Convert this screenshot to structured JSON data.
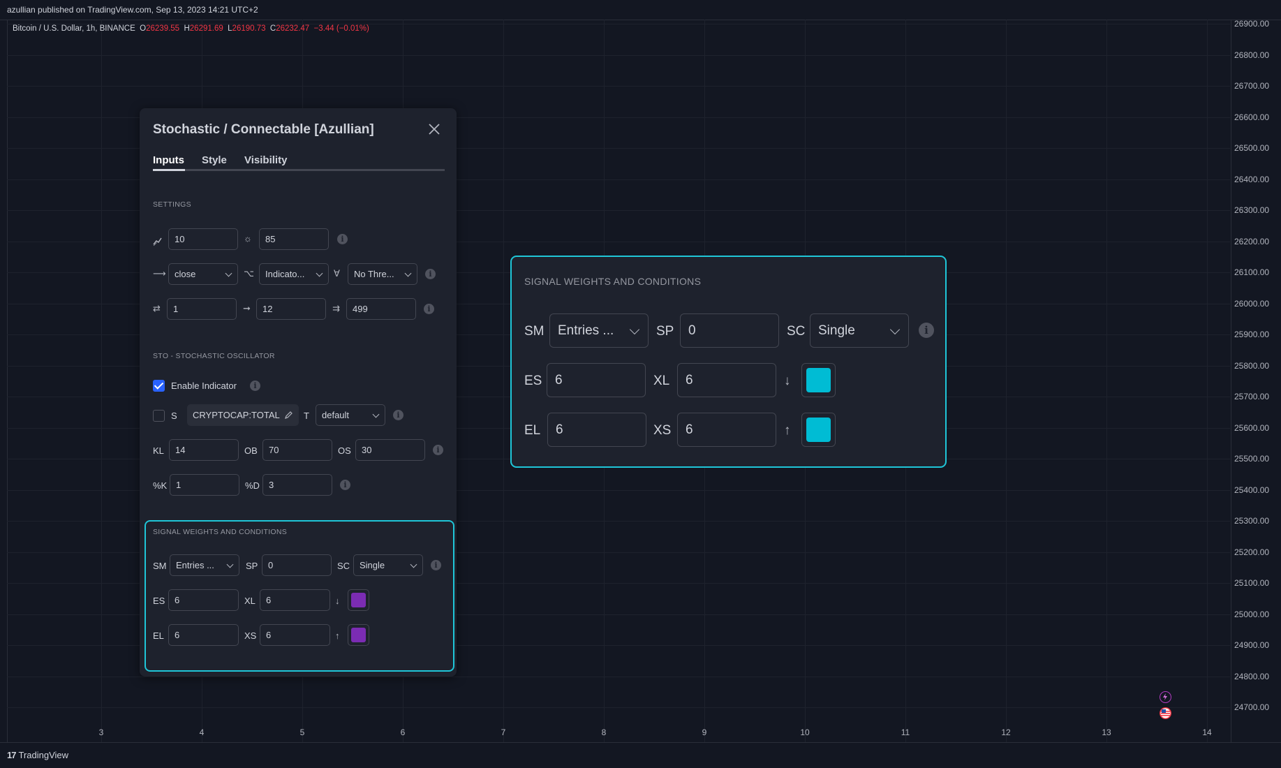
{
  "publish_line": "azullian published on TradingView.com, Sep 13, 2023 14:21 UTC+2",
  "symbol": {
    "name": "Bitcoin / U.S. Dollar, 1h, BINANCE",
    "o_label": "O",
    "o": "26239.55",
    "h_label": "H",
    "h": "26291.69",
    "l_label": "L",
    "l": "26190.73",
    "c_label": "C",
    "c": "26232.47",
    "change": "−3.44 (−0.01%)"
  },
  "price_axis": [
    "26900.00",
    "26800.00",
    "26700.00",
    "26600.00",
    "26500.00",
    "26400.00",
    "26300.00",
    "26200.00",
    "26100.00",
    "26000.00",
    "25900.00",
    "25800.00",
    "25700.00",
    "25600.00",
    "25500.00",
    "25400.00",
    "25300.00",
    "25200.00",
    "25100.00",
    "25000.00",
    "24900.00",
    "24800.00",
    "24700.00"
  ],
  "time_axis": [
    "3",
    "4",
    "5",
    "6",
    "7",
    "8",
    "9",
    "10",
    "11",
    "12",
    "13",
    "14"
  ],
  "footer": {
    "brand": "TradingView"
  },
  "colors": {
    "accent": "#2962ff",
    "highlight": "#1fc6d8",
    "purple": "#7b2cb3",
    "cyan": "#00bcd4",
    "red": "#f23645"
  },
  "dialog": {
    "title": "Stochastic / Connectable [Azullian]",
    "close_icon": "close-icon",
    "tabs": [
      "Inputs",
      "Style",
      "Visibility"
    ],
    "settings": {
      "header": "SETTINGS",
      "row1": {
        "a": "10",
        "b": "85"
      },
      "row2": {
        "source": "close",
        "mode": "Indicato...",
        "threshold": "No Thre..."
      },
      "row3": {
        "a": "1",
        "b": "12",
        "c": "499"
      }
    },
    "sto": {
      "header": "STO - STOCHASTIC OSCILLATOR",
      "enable_label": "Enable Indicator",
      "s_label": "S",
      "symbol": "CRYPTOCAP:TOTAL",
      "t_label": "T",
      "t_value": "default",
      "kl_label": "KL",
      "kl": "14",
      "ob_label": "OB",
      "ob": "70",
      "os_label": "OS",
      "os": "30",
      "k_label": "%K",
      "k": "1",
      "d_label": "%D",
      "d": "3"
    },
    "signal": {
      "header": "SIGNAL WEIGHTS AND CONDITIONS",
      "sm_label": "SM",
      "sm": "Entries ...",
      "sp_label": "SP",
      "sp": "0",
      "sc_label": "SC",
      "sc": "Single",
      "es_label": "ES",
      "es": "6",
      "xl_label": "XL",
      "xl": "6",
      "el_label": "EL",
      "el": "6",
      "xs_label": "XS",
      "xs": "6",
      "down_arrow": "↓",
      "up_arrow": "↑"
    }
  }
}
